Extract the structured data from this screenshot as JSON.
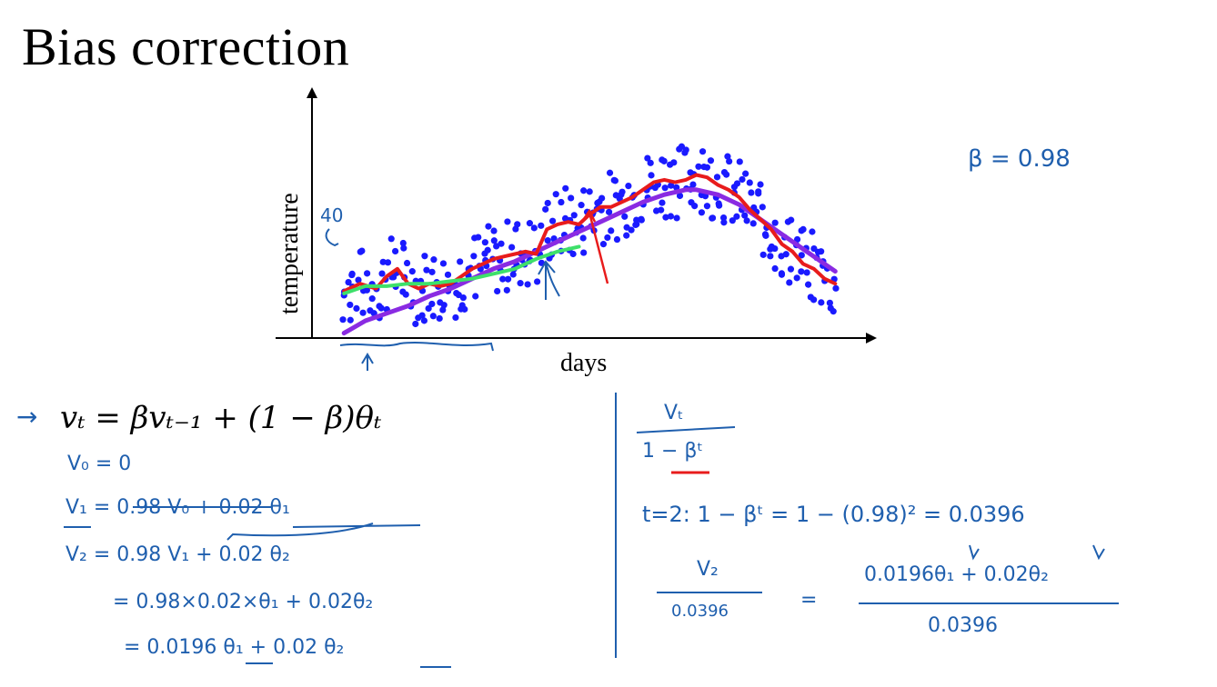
{
  "title": "Bias correction",
  "chart_data": {
    "type": "scatter",
    "title": "",
    "xlabel": "days",
    "ylabel": "temperature",
    "annotation_40": "40",
    "xlim": [
      0,
      100
    ],
    "ylim": [
      0,
      100
    ],
    "series": [
      {
        "kind": "points",
        "color": "#1a1aff"
      },
      {
        "kind": "line",
        "color": "#e81c1c",
        "x": [
          6,
          9,
          12,
          14,
          16,
          18,
          20,
          22,
          24,
          26,
          28,
          30,
          32,
          34,
          36,
          38,
          40,
          42,
          44,
          46,
          48,
          50,
          52,
          54,
          56,
          58,
          60,
          62,
          64,
          66,
          68,
          70,
          72,
          74,
          76,
          78,
          80,
          82,
          84,
          86,
          88,
          90,
          92,
          94,
          96,
          98
        ],
        "y": [
          19,
          22,
          20,
          25,
          28,
          22,
          20,
          22,
          21,
          22,
          25,
          28,
          30,
          32,
          33,
          34,
          35,
          34,
          44,
          46,
          47,
          46,
          50,
          53,
          53,
          55,
          57,
          60,
          63,
          64,
          63,
          64,
          66,
          65,
          62,
          60,
          57,
          52,
          48,
          44,
          38,
          35,
          30,
          28,
          24,
          22
        ]
      },
      {
        "kind": "line",
        "color": "#8a2be2",
        "x": [
          6,
          10,
          14,
          18,
          22,
          26,
          30,
          34,
          38,
          42,
          46,
          50,
          54,
          58,
          62,
          66,
          70,
          72,
          76,
          80,
          84,
          88,
          92,
          96,
          98
        ],
        "y": [
          2,
          7,
          10,
          13,
          17,
          20,
          24,
          28,
          31,
          35,
          39,
          43,
          47,
          51,
          55,
          58,
          60,
          60,
          58,
          54,
          48,
          42,
          36,
          30,
          27
        ]
      },
      {
        "kind": "line",
        "color": "#3ee06a",
        "x": [
          6,
          10,
          14,
          18,
          22,
          26,
          30,
          34,
          38,
          42,
          46,
          50
        ],
        "y": [
          18,
          21,
          21,
          22,
          22,
          23,
          24,
          26,
          28,
          32,
          35,
          37
        ]
      }
    ]
  },
  "equations": {
    "main": "vₜ = βvₜ₋₁ + (1 − β)θₜ",
    "v0": "V₀ = 0",
    "v1": "V₁ = 0.98 V₀ + 0.02 θ₁",
    "v2": "V₂ = 0.98 V₁ + 0.02 θ₂",
    "v2_line2": "= 0.98×0.02×θ₁ + 0.02θ₂",
    "v2_line3": "= 0.0196 θ₁ + 0.02 θ₂",
    "beta": "β = 0.98",
    "frac_num": "Vₜ",
    "frac_den": "1 − βᵗ",
    "t2": "t=2:  1 − βᵗ  =  1 − (0.98)²  = 0.0396",
    "v2_num": "V₂",
    "v2_den": "0.0396",
    "eq_sign": "=",
    "rhs_num": "0.0196θ₁ + 0.02θ₂",
    "rhs_den": "0.0396"
  }
}
